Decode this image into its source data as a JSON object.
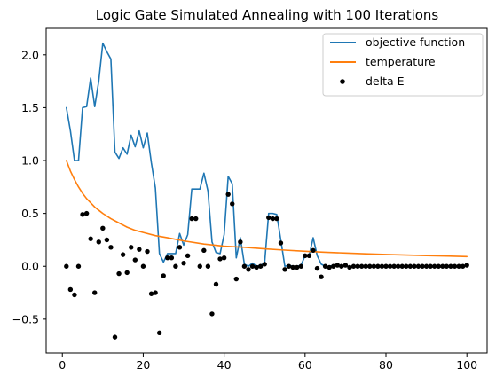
{
  "chart_data": {
    "type": "line",
    "title": "Logic Gate Simulated Annealing with 100 Iterations",
    "xlabel": "",
    "ylabel": "",
    "xlim": [
      -4,
      105
    ],
    "ylim": [
      -0.82,
      2.25
    ],
    "xticks": [
      {
        "value": 0,
        "label": "0"
      },
      {
        "value": 20,
        "label": "20"
      },
      {
        "value": 40,
        "label": "40"
      },
      {
        "value": 60,
        "label": "60"
      },
      {
        "value": 80,
        "label": "80"
      },
      {
        "value": 100,
        "label": "100"
      }
    ],
    "yticks": [
      {
        "value": -0.5,
        "label": "−0.5"
      },
      {
        "value": 0.0,
        "label": "0.0"
      },
      {
        "value": 0.5,
        "label": "0.5"
      },
      {
        "value": 1.0,
        "label": "1.0"
      },
      {
        "value": 1.5,
        "label": "1.5"
      },
      {
        "value": 2.0,
        "label": "2.0"
      }
    ],
    "grid": false,
    "legend_position": "top-right",
    "series": [
      {
        "name": "objective function",
        "kind": "line",
        "color": "#1f77b4",
        "points": [
          [
            1,
            1.5
          ],
          [
            2,
            1.28
          ],
          [
            3,
            1.0
          ],
          [
            4,
            1.0
          ],
          [
            5,
            1.5
          ],
          [
            6,
            1.51
          ],
          [
            7,
            1.78
          ],
          [
            8,
            1.51
          ],
          [
            9,
            1.75
          ],
          [
            10,
            2.11
          ],
          [
            11,
            2.03
          ],
          [
            12,
            1.96
          ],
          [
            13,
            1.08
          ],
          [
            14,
            1.02
          ],
          [
            15,
            1.12
          ],
          [
            16,
            1.06
          ],
          [
            17,
            1.24
          ],
          [
            18,
            1.13
          ],
          [
            19,
            1.28
          ],
          [
            20,
            1.12
          ],
          [
            21,
            1.26
          ],
          [
            22,
            0.98
          ],
          [
            23,
            0.74
          ],
          [
            24,
            0.12
          ],
          [
            25,
            0.04
          ],
          [
            26,
            0.12
          ],
          [
            27,
            0.12
          ],
          [
            28,
            0.12
          ],
          [
            29,
            0.31
          ],
          [
            30,
            0.2
          ],
          [
            31,
            0.3
          ],
          [
            32,
            0.73
          ],
          [
            33,
            0.73
          ],
          [
            34,
            0.73
          ],
          [
            35,
            0.88
          ],
          [
            36,
            0.71
          ],
          [
            37,
            0.23
          ],
          [
            38,
            0.13
          ],
          [
            39,
            0.12
          ],
          [
            40,
            0.3
          ],
          [
            41,
            0.85
          ],
          [
            42,
            0.78
          ],
          [
            43,
            0.08
          ],
          [
            44,
            0.27
          ],
          [
            45,
            0.02
          ],
          [
            46,
            0.0
          ],
          [
            47,
            0.03
          ],
          [
            48,
            0.0
          ],
          [
            49,
            0.01
          ],
          [
            50,
            0.03
          ],
          [
            51,
            0.5
          ],
          [
            52,
            0.5
          ],
          [
            53,
            0.49
          ],
          [
            54,
            0.25
          ],
          [
            55,
            0.0
          ],
          [
            56,
            0.01
          ],
          [
            57,
            0.0
          ],
          [
            58,
            0.0
          ],
          [
            59,
            0.01
          ],
          [
            60,
            0.1
          ],
          [
            61,
            0.1
          ],
          [
            62,
            0.27
          ],
          [
            63,
            0.1
          ],
          [
            64,
            0.02
          ],
          [
            65,
            0.0
          ],
          [
            66,
            0.0
          ],
          [
            67,
            0.01
          ],
          [
            68,
            0.0
          ],
          [
            69,
            0.01
          ],
          [
            70,
            0.0
          ],
          [
            71,
            0.0
          ],
          [
            72,
            0.0
          ],
          [
            73,
            0.0
          ],
          [
            74,
            0.0
          ],
          [
            75,
            0.0
          ],
          [
            76,
            0.0
          ],
          [
            77,
            0.0
          ],
          [
            78,
            0.0
          ],
          [
            79,
            0.0
          ],
          [
            80,
            0.0
          ],
          [
            81,
            0.0
          ],
          [
            82,
            0.0
          ],
          [
            83,
            0.0
          ],
          [
            84,
            0.0
          ],
          [
            85,
            0.0
          ],
          [
            86,
            0.0
          ],
          [
            87,
            0.0
          ],
          [
            88,
            0.0
          ],
          [
            89,
            0.0
          ],
          [
            90,
            0.0
          ],
          [
            91,
            0.0
          ],
          [
            92,
            0.0
          ],
          [
            93,
            0.0
          ],
          [
            94,
            0.0
          ],
          [
            95,
            0.0
          ],
          [
            96,
            0.0
          ],
          [
            97,
            0.0
          ],
          [
            98,
            0.0
          ],
          [
            99,
            0.0
          ],
          [
            100,
            0.01
          ]
        ]
      },
      {
        "name": "temperature",
        "kind": "line",
        "color": "#ff7f0e",
        "points": [
          [
            1,
            1.0
          ],
          [
            2,
            0.9
          ],
          [
            3,
            0.82
          ],
          [
            4,
            0.75
          ],
          [
            5,
            0.69
          ],
          [
            6,
            0.64
          ],
          [
            7,
            0.6
          ],
          [
            8,
            0.56
          ],
          [
            9,
            0.53
          ],
          [
            10,
            0.5
          ],
          [
            12,
            0.45
          ],
          [
            14,
            0.41
          ],
          [
            16,
            0.37
          ],
          [
            18,
            0.34
          ],
          [
            20,
            0.32
          ],
          [
            23,
            0.29
          ],
          [
            26,
            0.27
          ],
          [
            30,
            0.24
          ],
          [
            35,
            0.21
          ],
          [
            40,
            0.19
          ],
          [
            45,
            0.18
          ],
          [
            50,
            0.165
          ],
          [
            55,
            0.153
          ],
          [
            60,
            0.142
          ],
          [
            65,
            0.133
          ],
          [
            70,
            0.125
          ],
          [
            75,
            0.118
          ],
          [
            80,
            0.112
          ],
          [
            85,
            0.106
          ],
          [
            90,
            0.101
          ],
          [
            95,
            0.097
          ],
          [
            100,
            0.092
          ]
        ]
      },
      {
        "name": "delta E",
        "kind": "scatter",
        "color": "#000000",
        "points": [
          [
            1,
            0.0
          ],
          [
            2,
            -0.22
          ],
          [
            3,
            -0.27
          ],
          [
            4,
            0.0
          ],
          [
            5,
            0.49
          ],
          [
            6,
            0.5
          ],
          [
            7,
            0.26
          ],
          [
            8,
            -0.25
          ],
          [
            9,
            0.23
          ],
          [
            10,
            0.36
          ],
          [
            11,
            0.25
          ],
          [
            12,
            0.18
          ],
          [
            13,
            -0.67
          ],
          [
            14,
            -0.07
          ],
          [
            15,
            0.11
          ],
          [
            16,
            -0.06
          ],
          [
            17,
            0.18
          ],
          [
            18,
            0.06
          ],
          [
            19,
            0.16
          ],
          [
            20,
            0.0
          ],
          [
            21,
            0.14
          ],
          [
            22,
            -0.26
          ],
          [
            23,
            -0.25
          ],
          [
            24,
            -0.63
          ],
          [
            25,
            -0.09
          ],
          [
            26,
            0.08
          ],
          [
            27,
            0.08
          ],
          [
            28,
            0.0
          ],
          [
            29,
            0.18
          ],
          [
            30,
            0.03
          ],
          [
            31,
            0.1
          ],
          [
            32,
            0.45
          ],
          [
            33,
            0.45
          ],
          [
            34,
            0.0
          ],
          [
            35,
            0.15
          ],
          [
            36,
            0.0
          ],
          [
            37,
            -0.45
          ],
          [
            38,
            -0.17
          ],
          [
            39,
            0.07
          ],
          [
            40,
            0.08
          ],
          [
            41,
            0.68
          ],
          [
            42,
            0.59
          ],
          [
            43,
            -0.12
          ],
          [
            44,
            0.23
          ],
          [
            45,
            0.0
          ],
          [
            46,
            -0.03
          ],
          [
            47,
            0.0
          ],
          [
            48,
            -0.01
          ],
          [
            49,
            0.0
          ],
          [
            50,
            0.02
          ],
          [
            51,
            0.46
          ],
          [
            52,
            0.45
          ],
          [
            53,
            0.45
          ],
          [
            54,
            0.22
          ],
          [
            55,
            -0.03
          ],
          [
            56,
            0.0
          ],
          [
            57,
            -0.01
          ],
          [
            58,
            -0.01
          ],
          [
            59,
            0.0
          ],
          [
            60,
            0.1
          ],
          [
            61,
            0.1
          ],
          [
            62,
            0.15
          ],
          [
            63,
            -0.02
          ],
          [
            64,
            -0.1
          ],
          [
            65,
            0.0
          ],
          [
            66,
            -0.01
          ],
          [
            67,
            0.0
          ],
          [
            68,
            0.01
          ],
          [
            69,
            0.0
          ],
          [
            70,
            0.01
          ],
          [
            71,
            -0.01
          ],
          [
            72,
            0.0
          ],
          [
            73,
            0.0
          ],
          [
            74,
            0.0
          ],
          [
            75,
            0.0
          ],
          [
            76,
            0.0
          ],
          [
            77,
            0.0
          ],
          [
            78,
            0.0
          ],
          [
            79,
            0.0
          ],
          [
            80,
            0.0
          ],
          [
            81,
            0.0
          ],
          [
            82,
            0.0
          ],
          [
            83,
            0.0
          ],
          [
            84,
            0.0
          ],
          [
            85,
            0.0
          ],
          [
            86,
            0.0
          ],
          [
            87,
            0.0
          ],
          [
            88,
            0.0
          ],
          [
            89,
            0.0
          ],
          [
            90,
            0.0
          ],
          [
            91,
            0.0
          ],
          [
            92,
            0.0
          ],
          [
            93,
            0.0
          ],
          [
            94,
            0.0
          ],
          [
            95,
            0.0
          ],
          [
            96,
            0.0
          ],
          [
            97,
            0.0
          ],
          [
            98,
            0.0
          ],
          [
            99,
            0.0
          ],
          [
            100,
            0.01
          ]
        ]
      }
    ],
    "legend": [
      {
        "label": "objective function",
        "marker": "line",
        "color": "#1f77b4"
      },
      {
        "label": "temperature",
        "marker": "line",
        "color": "#ff7f0e"
      },
      {
        "label": "delta E",
        "marker": "dot",
        "color": "#000000"
      }
    ]
  }
}
